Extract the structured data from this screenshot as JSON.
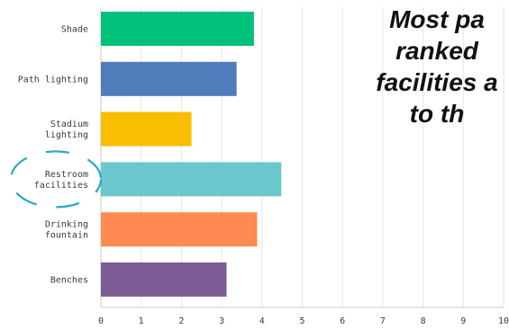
{
  "chart_data": {
    "type": "bar",
    "orientation": "horizontal",
    "categories": [
      "Shade",
      "Path lighting",
      "Stadium lighting",
      "Restroom facilities",
      "Drinking fountain",
      "Benches"
    ],
    "category_label_lines": [
      [
        "Shade"
      ],
      [
        "Path lighting"
      ],
      [
        "Stadium",
        "lighting"
      ],
      [
        "Restroom",
        "facilities"
      ],
      [
        "Drinking",
        "fountain"
      ],
      [
        "Benches"
      ]
    ],
    "values": [
      3.8,
      3.37,
      2.25,
      4.48,
      3.88,
      3.12
    ],
    "colors": [
      "#00c07a",
      "#4f7cba",
      "#f8be00",
      "#6ac8cc",
      "#ff8a52",
      "#7d5c95"
    ],
    "xlim": [
      0,
      10
    ],
    "xticks": [
      "0",
      "1",
      "2",
      "3",
      "4",
      "5",
      "6",
      "7",
      "8",
      "9",
      "10"
    ],
    "grid": true,
    "highlight_category": "Restroom facilities",
    "highlight_color": "#2aa9c0"
  },
  "callout": {
    "lines": [
      "Most pa",
      "ranked",
      "facilities a",
      "to th"
    ]
  }
}
